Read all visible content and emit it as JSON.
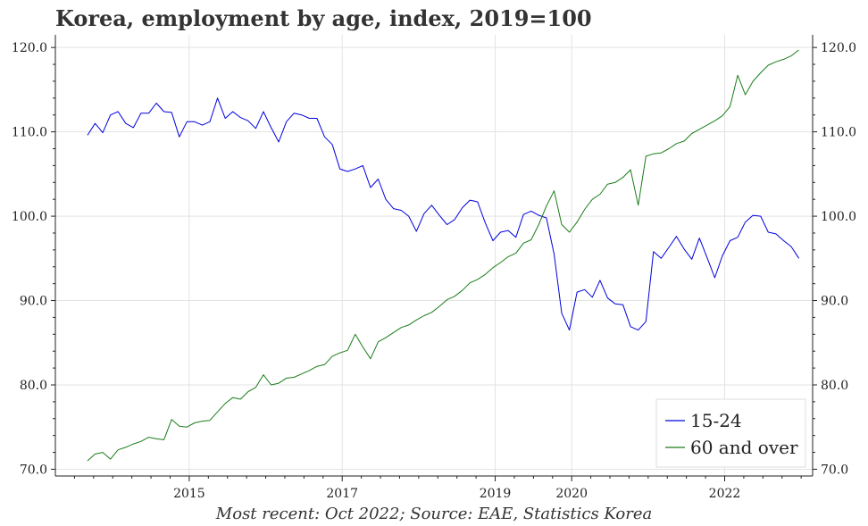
{
  "title": "Korea, employment by age, index, 2019=100",
  "caption": "Most recent: Oct 2022; Source: EAE, Statistics Korea",
  "colors": {
    "series_1": "#0000dd",
    "series_2": "#1a7d1a",
    "grid": "#e3e3e3",
    "axis": "#222222"
  },
  "chart_data": {
    "type": "line",
    "title": "Korea, employment by age, index, 2019=100",
    "x_unit": "year",
    "xlim": [
      2013.25,
      2023.15
    ],
    "ylim": [
      69.2,
      121.5
    ],
    "x_ticks": [
      2015,
      2017,
      2019,
      2020,
      2022
    ],
    "x_tick_labels": [
      "2015",
      "2017",
      "2019",
      "2020",
      "2022"
    ],
    "y_ticks": [
      70,
      80,
      90,
      100,
      110,
      120
    ],
    "y_tick_labels": [
      "70.0",
      "80.0",
      "90.0",
      "100.0",
      "110.0",
      "120.0"
    ],
    "grid": true,
    "dual_y_axis": true,
    "legend_position": "bottom-right",
    "series": [
      {
        "name": "15-24",
        "x_start": 2013.67,
        "x_step": 0.1,
        "values": [
          109.6,
          111.0,
          109.9,
          112.0,
          112.4,
          111.0,
          110.5,
          112.2,
          112.2,
          113.4,
          112.4,
          112.3,
          109.4,
          111.2,
          111.2,
          110.8,
          111.2,
          114.0,
          111.6,
          112.4,
          111.7,
          111.3,
          110.4,
          112.4,
          110.5,
          108.8,
          111.2,
          112.2,
          112.0,
          111.6,
          111.6,
          109.4,
          108.5,
          105.6,
          105.3,
          105.6,
          106.0,
          103.4,
          104.4,
          102.0,
          100.9,
          100.7,
          100.0,
          98.2,
          100.3,
          101.3,
          100.1,
          99.0,
          99.6,
          101.0,
          101.9,
          101.7,
          99.2,
          97.1,
          98.1,
          98.3,
          97.5,
          100.2,
          100.6,
          100.1,
          99.8,
          95.5,
          88.5,
          86.5,
          91.0,
          91.3,
          90.4,
          92.4,
          90.3,
          89.6,
          89.5,
          86.9,
          86.5,
          87.5,
          95.8,
          95.0,
          96.3,
          97.6,
          96.1,
          94.9,
          97.4,
          95.1,
          92.7,
          95.3,
          97.1,
          97.5,
          99.3,
          100.1,
          100.0,
          98.1,
          97.9,
          97.1,
          96.4,
          95.0
        ]
      },
      {
        "name": "60 and over",
        "x_start": 2013.67,
        "x_step": 0.1,
        "values": [
          71.0,
          71.8,
          72.0,
          71.2,
          72.3,
          72.6,
          73.0,
          73.3,
          73.8,
          73.6,
          73.5,
          75.9,
          75.1,
          75.0,
          75.5,
          75.7,
          75.8,
          76.8,
          77.8,
          78.5,
          78.3,
          79.2,
          79.7,
          81.2,
          80.0,
          80.2,
          80.8,
          80.9,
          81.3,
          81.7,
          82.2,
          82.4,
          83.4,
          83.8,
          84.1,
          86.0,
          84.5,
          83.1,
          85.1,
          85.6,
          86.2,
          86.8,
          87.1,
          87.7,
          88.2,
          88.6,
          89.3,
          90.1,
          90.5,
          91.2,
          92.1,
          92.5,
          93.1,
          93.9,
          94.5,
          95.2,
          95.6,
          96.8,
          97.2,
          99.0,
          101.2,
          103.0,
          99.0,
          98.1,
          99.3,
          100.8,
          102.0,
          102.6,
          103.8,
          104.0,
          104.6,
          105.5,
          101.3,
          107.1,
          107.4,
          107.5,
          108.0,
          108.6,
          108.9,
          109.8,
          110.3,
          110.8,
          111.3,
          111.9,
          113.0,
          116.7,
          114.4,
          116.0,
          117.0,
          117.9,
          118.3,
          118.6,
          119.0,
          119.7
        ]
      }
    ]
  }
}
